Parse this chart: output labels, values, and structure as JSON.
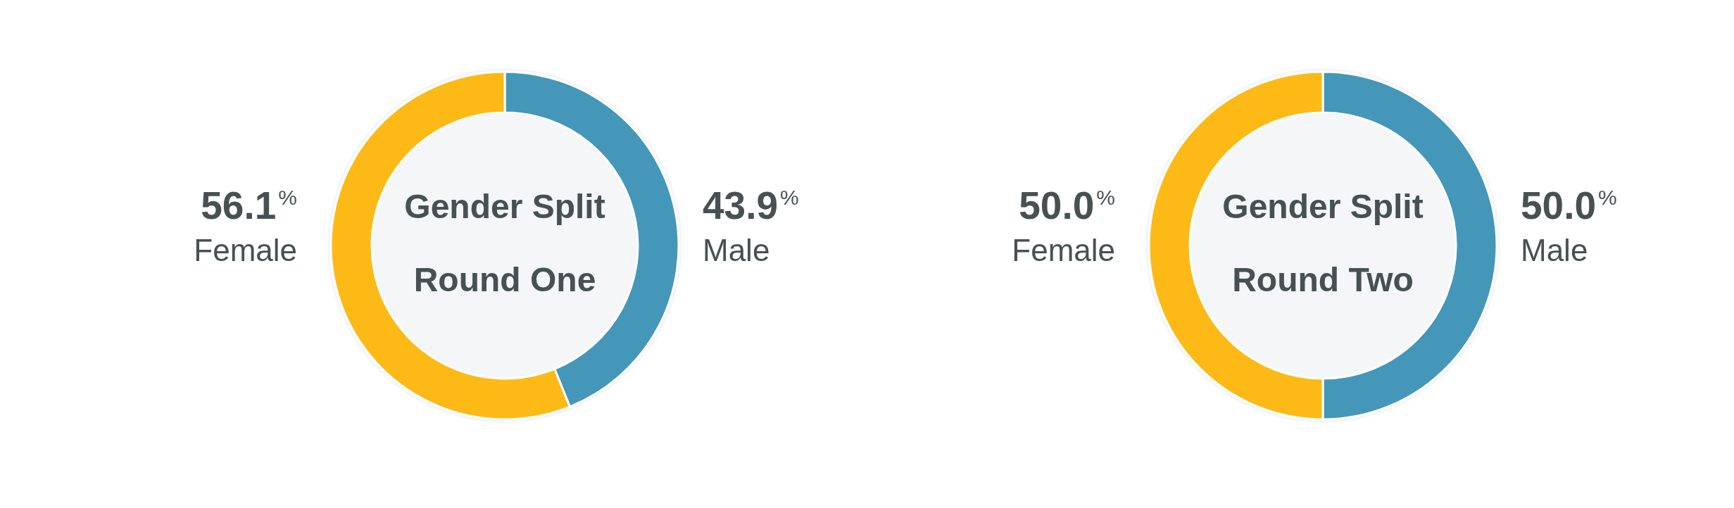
{
  "chart_data": [
    {
      "type": "donut",
      "title": "Gender Split",
      "subtitle": "Round One",
      "categories": [
        "Male",
        "Female"
      ],
      "values": [
        43.9,
        56.1
      ],
      "colors": [
        "#4497b9",
        "#fdb915"
      ],
      "value_labels": [
        "43.9$^{%}$",
        "56.1$^{%}$"
      ]
    },
    {
      "type": "donut",
      "title": "Gender Split",
      "subtitle": "Round Two",
      "categories": [
        "Male",
        "Female"
      ],
      "values": [
        50.0,
        50.0
      ],
      "colors": [
        "#4497b9",
        "#fdb915"
      ],
      "value_labels": [
        "50.0$^{%}$",
        "50.0$^{%}$"
      ]
    }
  ]
}
